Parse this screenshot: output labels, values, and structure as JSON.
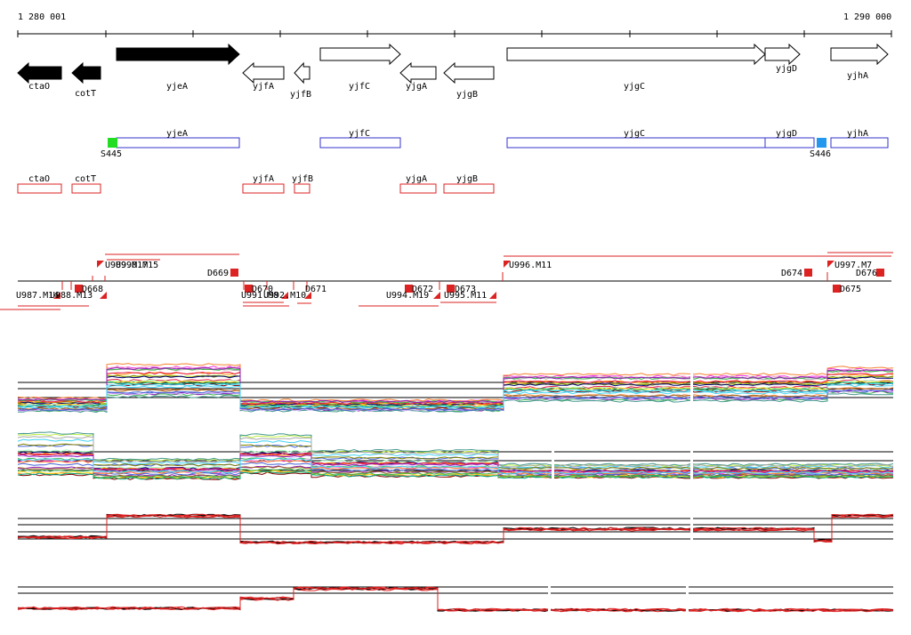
{
  "coords": {
    "start": "1 280 001",
    "end": "1 290 000"
  },
  "colors": {
    "black": "#000000",
    "blue": "#3333cc",
    "red": "#dd2222",
    "sigma_green": "#22dd22",
    "sigma_cyan": "#2299ee"
  },
  "genes": [
    {
      "name": "ctaO",
      "strand": "-",
      "filled": true
    },
    {
      "name": "cotT",
      "strand": "-",
      "filled": true
    },
    {
      "name": "yjeA",
      "strand": "+",
      "filled": true
    },
    {
      "name": "yjfA",
      "strand": "-",
      "filled": false
    },
    {
      "name": "yjfB",
      "strand": "-",
      "filled": false
    },
    {
      "name": "yjfC",
      "strand": "+",
      "filled": false
    },
    {
      "name": "yjgA",
      "strand": "-",
      "filled": false
    },
    {
      "name": "yjgB",
      "strand": "-",
      "filled": false
    },
    {
      "name": "yjgC",
      "strand": "+",
      "filled": false
    },
    {
      "name": "yjgD",
      "strand": "+",
      "filled": false
    },
    {
      "name": "yjhA",
      "strand": "+",
      "filled": false
    }
  ],
  "operons_plus": [
    {
      "name": "yjeA"
    },
    {
      "name": "yjfC"
    },
    {
      "name": "yjgC"
    },
    {
      "name": "yjgD"
    },
    {
      "name": "yjhA"
    }
  ],
  "sigma_sites": [
    {
      "label": "S445",
      "color": "#22dd22"
    },
    {
      "label": "S446",
      "color": "#2299ee"
    }
  ],
  "operons_minus": [
    {
      "name": "ctaO"
    },
    {
      "name": "cotT"
    },
    {
      "name": "yjfA"
    },
    {
      "name": "yjfB"
    },
    {
      "name": "yjgA"
    },
    {
      "name": "yjgB"
    }
  ],
  "tu_labels_upper": [
    {
      "text": "U989.M17"
    },
    {
      "text": "U990.M15"
    },
    {
      "text": "D669"
    },
    {
      "text": "U996.M11"
    },
    {
      "text": "D674"
    },
    {
      "text": "U997.M7"
    },
    {
      "text": "D676"
    }
  ],
  "tu_labels_lower": [
    {
      "text": "U987.M14"
    },
    {
      "text": "U988.M13"
    },
    {
      "text": "D668"
    },
    {
      "text": "U991.M8"
    },
    {
      "text": "U992.M10"
    },
    {
      "text": "D670"
    },
    {
      "text": "D671"
    },
    {
      "text": "U994.M19"
    },
    {
      "text": "D672"
    },
    {
      "text": "U995.M11"
    },
    {
      "text": "D673"
    },
    {
      "text": "D675"
    }
  ]
}
